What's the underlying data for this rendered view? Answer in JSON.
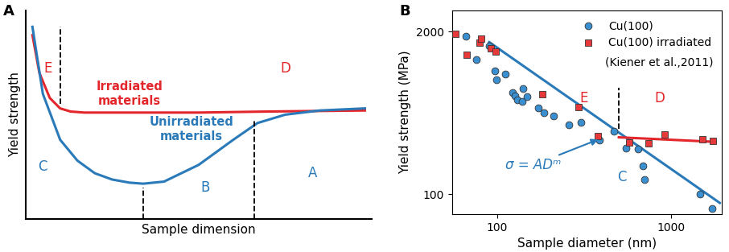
{
  "chart_data": [
    {
      "type": "line",
      "panel": "A",
      "x_label": "Sample dimension",
      "y_label": "Yield strength",
      "xlim": [
        0,
        10
      ],
      "ylim": [
        0,
        10
      ],
      "tick_labels": false,
      "series": [
        {
          "name": "Irradiated\nmaterials",
          "color": "#e3262b",
          "line_style": "solid",
          "x": [
            0.2,
            0.4,
            0.7,
            1.0,
            1.3,
            1.7,
            3,
            5,
            7,
            9.8
          ],
          "values": [
            8.8,
            7.0,
            5.8,
            5.3,
            5.15,
            5.1,
            5.1,
            5.1,
            5.15,
            5.2
          ]
        },
        {
          "name": "Unirradiated\nmaterials",
          "color": "#2a7ab9",
          "line_style": "solid",
          "x": [
            0.2,
            0.5,
            1,
            1.5,
            2,
            2.5,
            3.0,
            3.4,
            4,
            5,
            6,
            6.7,
            7.5,
            8.5,
            9.8
          ],
          "values": [
            9.2,
            6.0,
            3.8,
            2.8,
            2.2,
            1.9,
            1.75,
            1.7,
            1.8,
            2.6,
            3.8,
            4.6,
            5.0,
            5.2,
            5.3
          ]
        }
      ],
      "boundaries": [
        1.0,
        3.4,
        6.6
      ],
      "annotations": [
        {
          "text": "E",
          "color": "#e3262b"
        },
        {
          "text": "D",
          "color": "#e3262b"
        },
        {
          "text": "C",
          "color": "#2a7ab9"
        },
        {
          "text": "B",
          "color": "#2a7ab9"
        },
        {
          "text": "A",
          "color": "#2a7ab9"
        }
      ]
    },
    {
      "type": "scatter",
      "panel": "B",
      "x_label": "Sample diameter (nm)",
      "y_label": "Yield strength (MPa)",
      "log": true,
      "xlim": [
        55,
        1950
      ],
      "ylim": [
        69,
        2980
      ],
      "xticks": [
        100,
        1000
      ],
      "yticks": [
        100,
        2000
      ],
      "legend": "upper right",
      "legend_note": "(Kiener et al.,2011)",
      "series": [
        {
          "name": "Cu(100)",
          "color": "#3a8fd0",
          "marker": "circle",
          "x": [
            66,
            76,
            90,
            97,
            99,
            111,
            123,
            127,
            130,
            139,
            141,
            148,
            172,
            185,
            212,
            257,
            302,
            385,
            470,
            552,
            642,
            688,
            700,
            1460,
            1720
          ],
          "values": [
            1850,
            1190,
            1535,
            973,
            829,
            911,
            651,
            610,
            570,
            555,
            697,
            601,
            492,
            448,
            424,
            357,
            377,
            269,
            320,
            235,
            229,
            168,
            131,
            100,
            77
          ]
        },
        {
          "name": "Cu(100) irradiated",
          "color": "#e8393a",
          "marker": "square",
          "x": [
            57.5,
            67,
            79,
            81,
            92,
            98,
            181,
            293,
            377,
            575,
            740,
            912,
            1510,
            1740
          ],
          "values": [
            1927,
            1306,
            1641,
            1755,
            1474,
            1380,
            635,
            499,
            292,
            259,
            255,
            300,
            273,
            266
          ]
        },
        {
          "type": "line",
          "color": "#2a7ab9",
          "line_style": "solid",
          "x": [
            90,
            1900
          ],
          "values": [
            1650,
            85
          ]
        },
        {
          "type": "line",
          "color": "#e3262b",
          "line_style": "solid",
          "x": [
            500,
            1800
          ],
          "values": [
            285,
            262
          ]
        }
      ],
      "boundaries": [
        500
      ],
      "annotations": [
        {
          "text": "σ = ADᵐ",
          "color": "#2a7ab9"
        },
        {
          "text": "E",
          "color": "#e3262b"
        },
        {
          "text": "D",
          "color": "#e3262b"
        },
        {
          "text": "C",
          "color": "#2a7ab9"
        }
      ]
    }
  ]
}
